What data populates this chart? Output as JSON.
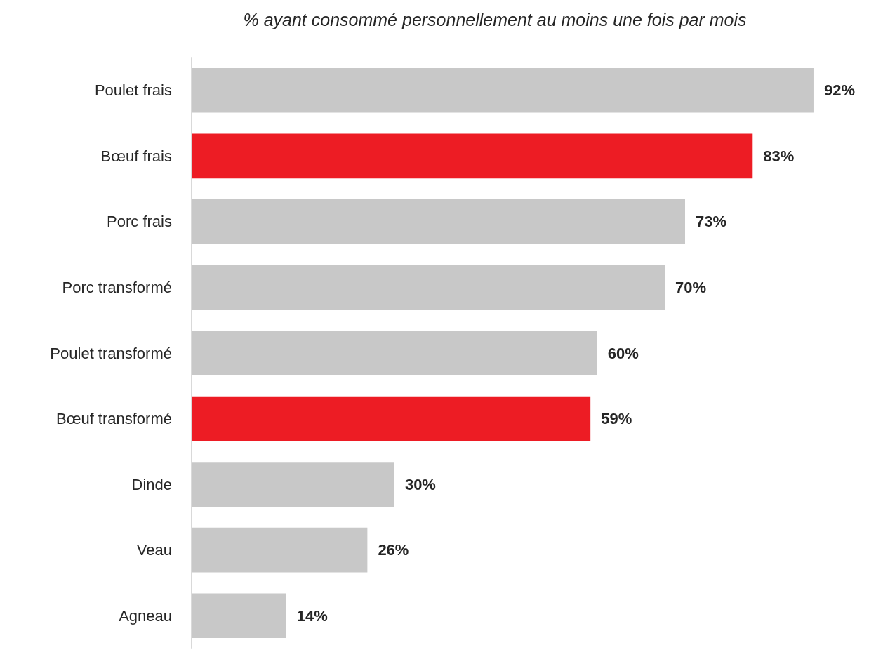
{
  "chart_data": {
    "type": "bar",
    "orientation": "horizontal",
    "title": "% ayant consommé personnellement au moins une fois par mois",
    "categories": [
      "Poulet frais",
      "Bœuf frais",
      "Porc frais",
      "Porc transformé",
      "Poulet transformé",
      "Bœuf transformé",
      "Dinde",
      "Veau",
      "Agneau"
    ],
    "values": [
      92,
      83,
      73,
      70,
      60,
      59,
      30,
      26,
      14
    ],
    "colors": [
      "#c8c8c8",
      "#ed1c24",
      "#c8c8c8",
      "#c8c8c8",
      "#c8c8c8",
      "#ed1c24",
      "#c8c8c8",
      "#c8c8c8",
      "#c8c8c8"
    ],
    "value_labels": [
      "92%",
      "83%",
      "73%",
      "70%",
      "60%",
      "59%",
      "30%",
      "26%",
      "14%"
    ],
    "grid": false
  }
}
